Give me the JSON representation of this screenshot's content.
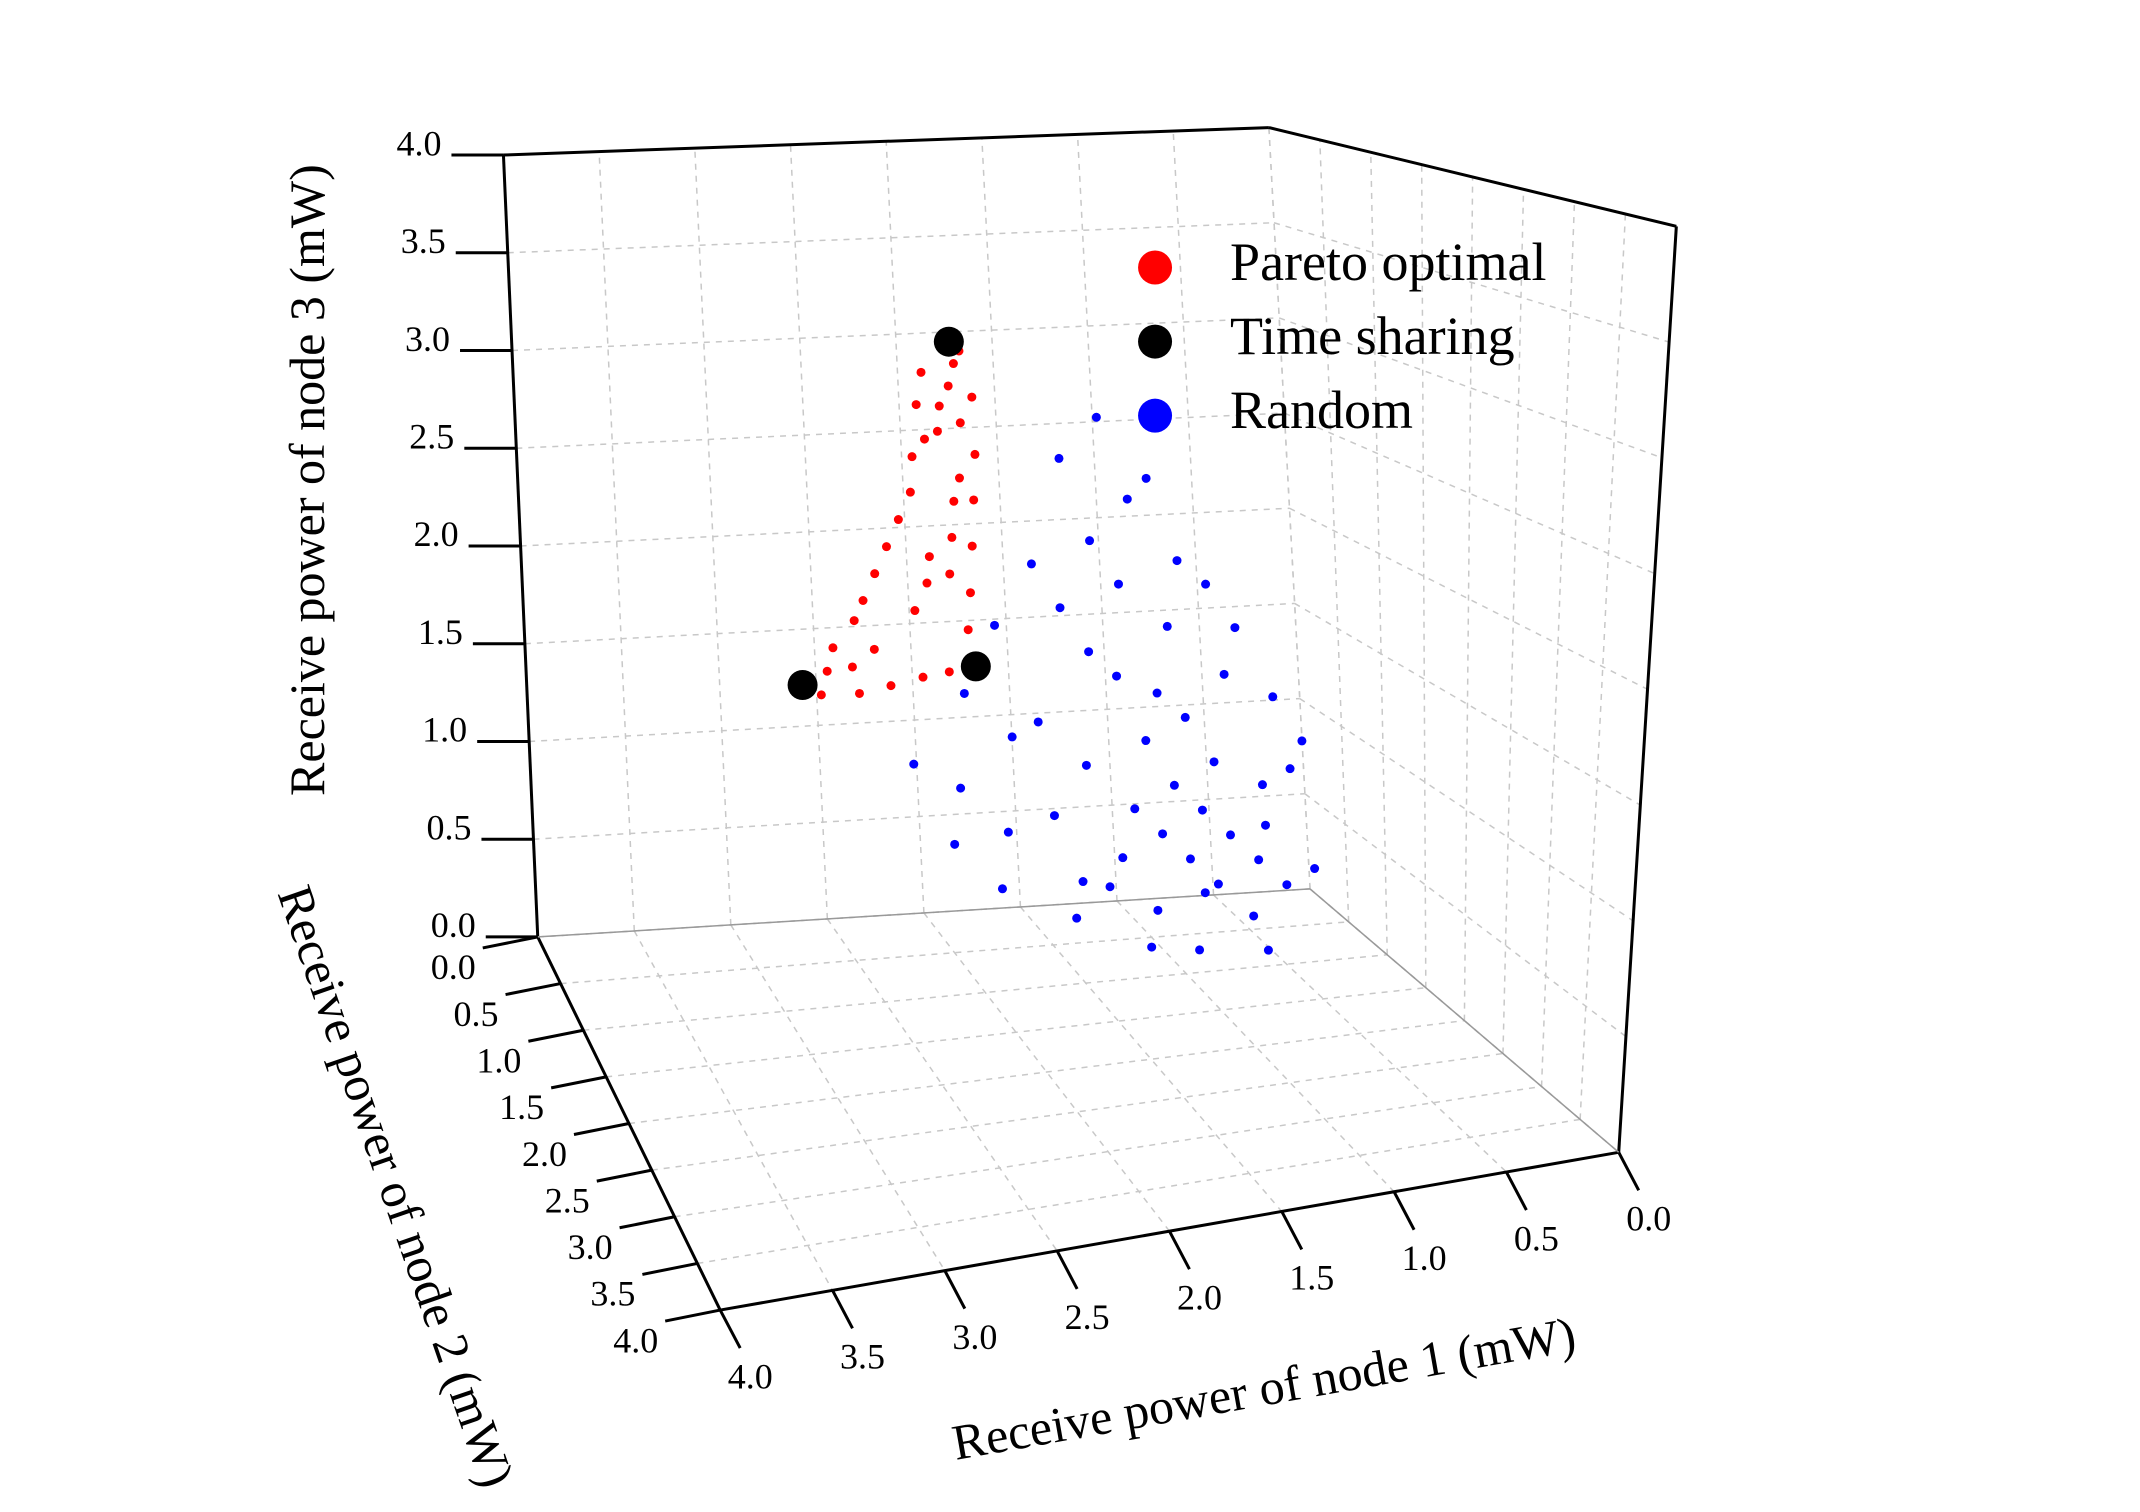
{
  "chart_data": {
    "type": "scatter3d",
    "xlabel": "Receive power of node 1 (mW)",
    "ylabel": "Receive power of node 2 (mW)",
    "zlabel": "Receive power of node 3 (mW)",
    "xlim": [
      0,
      4
    ],
    "ylim": [
      0,
      4
    ],
    "zlim": [
      0,
      4
    ],
    "xticks": [
      {
        "value": 0,
        "label": "0.0"
      },
      0.5,
      {
        "value": 1,
        "label": "1.0"
      },
      1.5,
      {
        "value": 2,
        "label": "2.0"
      },
      2.5,
      {
        "value": 3,
        "label": "3.0"
      },
      3.5,
      {
        "value": 4,
        "label": "4.0"
      }
    ],
    "yticks": [
      {
        "value": 0,
        "label": "0.0"
      },
      0.5,
      {
        "value": 1,
        "label": "1.0"
      },
      1.5,
      {
        "value": 2,
        "label": "2.0"
      },
      2.5,
      {
        "value": 3,
        "label": "3.0"
      },
      3.5,
      {
        "value": 4,
        "label": "4.0"
      }
    ],
    "zticks": [
      {
        "value": 0,
        "label": "0.0"
      },
      0.5,
      {
        "value": 1,
        "label": "1.0"
      },
      1.5,
      {
        "value": 2,
        "label": "2.0"
      },
      2.5,
      {
        "value": 3,
        "label": "3.0"
      },
      3.5,
      {
        "value": 4,
        "label": "4.0"
      }
    ],
    "grid": true,
    "legend": "upper right",
    "series": [
      {
        "name": "Random",
        "color": "#0000ff",
        "x": [
          0.9,
          0.8,
          1.0,
          0.7,
          1.1,
          0.9,
          0.8,
          1.0,
          0.6,
          1.2,
          0.7,
          1.0,
          0.9,
          1.1,
          0.5,
          0.8,
          1.3,
          1.2,
          0.6,
          1.0,
          0.7,
          1.2,
          0.9,
          1.4,
          1.5,
          1.3,
          0.6,
          1.1,
          1.4,
          0.8,
          1.6,
          1.2,
          1.0,
          1.5,
          1.7,
          1.8,
          2.0,
          1.9,
          1.6,
          1.3,
          2.2,
          2.1,
          1.3,
          1.1,
          0.9,
          0.5,
          0.4,
          0.5,
          1.7,
          1.9,
          0.7,
          1.4,
          1.1,
          0.8,
          1.6
        ],
        "y": [
          1.0,
          1.1,
          0.9,
          1.2,
          1.0,
          1.2,
          0.9,
          1.1,
          1.0,
          0.9,
          1.3,
          1.3,
          0.8,
          0.8,
          1.1,
          1.4,
          1.0,
          1.2,
          1.3,
          0.7,
          0.8,
          0.7,
          0.6,
          0.8,
          1.0,
          0.6,
          0.7,
          0.5,
          0.5,
          0.5,
          0.7,
          0.4,
          0.4,
          0.4,
          0.6,
          0.8,
          0.7,
          1.0,
          1.2,
          1.4,
          0.6,
          0.9,
          0.3,
          0.3,
          0.4,
          0.9,
          1.0,
          1.4,
          0.4,
          0.5,
          0.6,
          1.1,
          1.5,
          1.6,
          0.9
        ],
        "z": [
          0.8,
          0.7,
          0.9,
          0.6,
          0.7,
          0.5,
          1.0,
          0.6,
          0.9,
          0.8,
          0.8,
          0.5,
          1.2,
          1.1,
          1.0,
          0.4,
          0.6,
          0.4,
          0.5,
          1.3,
          1.4,
          1.4,
          1.6,
          1.0,
          0.5,
          1.5,
          1.6,
          1.8,
          1.7,
          1.9,
          1.2,
          2.0,
          2.2,
          1.9,
          1.1,
          0.7,
          0.9,
          0.5,
          0.4,
          0.3,
          1.0,
          0.7,
          2.4,
          2.6,
          2.3,
          1.3,
          1.1,
          0.6,
          1.6,
          1.3,
          1.8,
          0.5,
          0.3,
          0.3,
          0.8
        ]
      },
      {
        "name": "Pareto optimal",
        "color": "#ff0000",
        "x": [
          1.8,
          1.85,
          1.9,
          1.75,
          1.95,
          1.85,
          1.8,
          2.0,
          1.9,
          2.05,
          1.95,
          2.1,
          2.0,
          2.15,
          2.05,
          2.2,
          2.25,
          2.3,
          2.35,
          2.45,
          2.5,
          2.55,
          2.4,
          2.3,
          2.2,
          2.1,
          2.0,
          1.95,
          1.9,
          1.85,
          2.3,
          2.15,
          2.05,
          2.4,
          1.95,
          1.75,
          2.0,
          2.1
        ],
        "y": [
          0.25,
          0.3,
          0.3,
          0.35,
          0.4,
          0.45,
          0.5,
          0.35,
          0.55,
          0.3,
          0.6,
          0.4,
          0.7,
          0.35,
          0.8,
          0.3,
          0.25,
          0.2,
          0.2,
          0.15,
          0.2,
          0.25,
          0.4,
          0.6,
          0.8,
          0.9,
          0.9,
          0.8,
          0.7,
          0.6,
          0.35,
          0.55,
          0.5,
          0.3,
          0.2,
          0.2,
          0.25,
          0.6
        ],
        "z": [
          2.9,
          2.8,
          2.7,
          2.75,
          2.6,
          2.65,
          2.5,
          2.55,
          2.4,
          2.45,
          2.3,
          2.3,
          2.15,
          2.15,
          2.0,
          2.0,
          1.85,
          1.7,
          1.6,
          1.45,
          1.35,
          1.25,
          1.3,
          1.4,
          1.5,
          1.55,
          1.75,
          1.9,
          2.1,
          2.3,
          1.5,
          1.75,
          2.0,
          1.4,
          2.85,
          2.95,
          2.7,
          1.9
        ]
      },
      {
        "name": "Time sharing",
        "color": "#000000",
        "x": [
          1.8,
          2.6,
          2.0
        ],
        "y": [
          0.2,
          0.1,
          1.0
        ],
        "z": [
          3.0,
          1.25,
          1.6
        ]
      }
    ]
  }
}
